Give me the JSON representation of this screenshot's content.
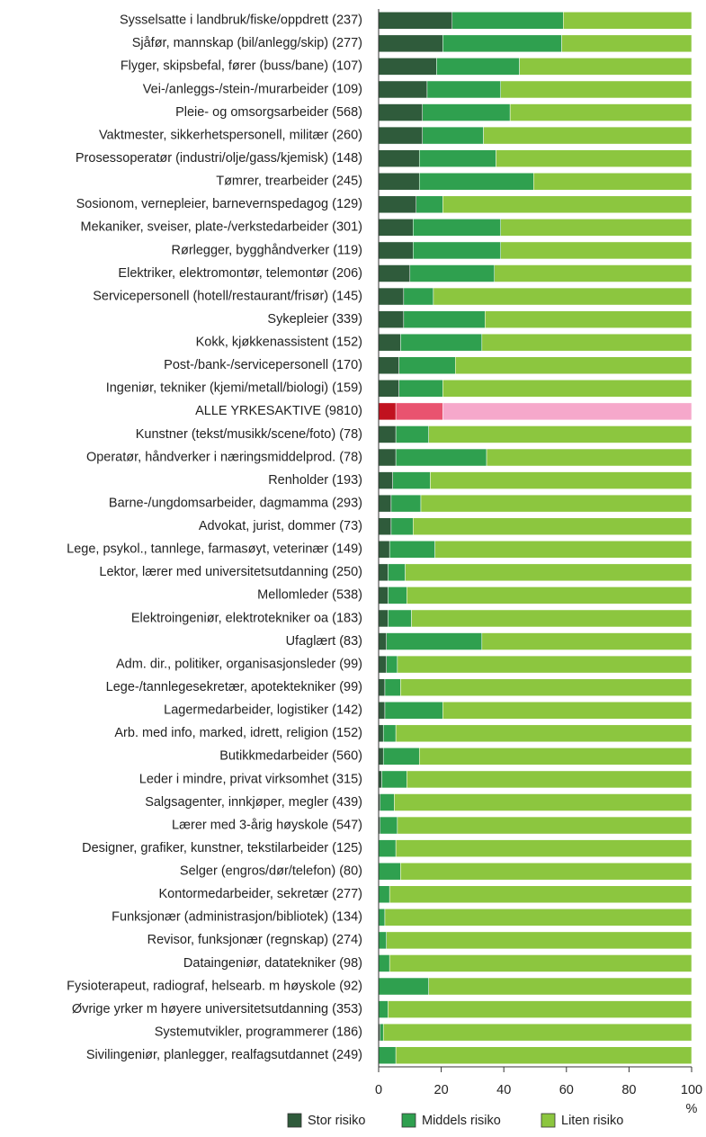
{
  "chart_data": {
    "type": "stacked_barh",
    "categories": [
      "Sysselsatte i landbruk/fiske/oppdrett (237)",
      "Sjåfør, mannskap (bil/anlegg/skip) (277)",
      "Flyger, skipsbefal, fører (buss/bane) (107)",
      "Vei-/anleggs-/stein-/murarbeider (109)",
      "Pleie- og omsorgsarbeider (568)",
      "Vaktmester, sikkerhetspersonell, militær (260)",
      "Prosessoperatør (industri/olje/gass/kjemisk) (148)",
      "Tømrer, trearbeider (245)",
      "Sosionom, vernepleier, barnevernspedagog (129)",
      "Mekaniker, sveiser, plate-/verkstedarbeider (301)",
      "Rørlegger, bygghåndverker (119)",
      "Elektriker, elektromontør, telemontør (206)",
      "Servicepersonell (hotell/restaurant/frisør) (145)",
      "Sykepleier (339)",
      "Kokk, kjøkkenassistent (152)",
      "Post-/bank-/servicepersonell (170)",
      "Ingeniør, tekniker (kjemi/metall/biologi) (159)",
      "ALLE YRKESAKTIVE (9810)",
      "Kunstner (tekst/musikk/scene/foto) (78)",
      "Operatør, håndverker i næringsmiddelprod. (78)",
      "Renholder (193)",
      "Barne-/ungdomsarbeider, dagmamma (293)",
      "Advokat, jurist, dommer (73)",
      "Lege, psykol., tannlege, farmasøyt, veterinær (149)",
      "Lektor, lærer med universitetsutdanning (250)",
      "Mellomleder (538)",
      "Elektroingeniør, elektrotekniker oa (183)",
      "Ufaglært (83)",
      "Adm. dir., politiker, organisasjonsleder (99)",
      "Lege-/tannlegesekretær, apotektekniker (99)",
      "Lagermedarbeider, logistiker (142)",
      "Arb. med info, marked, idrett, religion (152)",
      "Butikkmedarbeider (560)",
      "Leder i mindre, privat virksomhet (315)",
      "Salgsagenter, innkjøper, megler (439)",
      "Lærer med 3-årig høyskole (547)",
      "Designer, grafiker, kunstner, tekstilarbeider (125)",
      "Selger (engros/dør/telefon) (80)",
      "Kontormedarbeider, sekretær (277)",
      "Funksjonær (administrasjon/bibliotek) (134)",
      "Revisor, funksjonær (regnskap) (274)",
      "Dataingeniør, datatekniker (98)",
      "Fysioterapeut, radiograf, helsearb. m høyskole (92)",
      "Øvrige yrker m høyere universitetsutdanning (353)",
      "Systemutvikler, programmerer (186)",
      "Sivilingeniør, planlegger, realfagsutdannet (249)"
    ],
    "series": [
      {
        "name": "Stor risiko",
        "color": "#2f5b3b",
        "values": [
          23.5,
          20.5,
          18.5,
          15.5,
          14,
          14,
          13,
          13,
          12,
          11,
          11,
          10,
          8,
          8,
          7,
          6.5,
          6.5,
          5.5,
          5.5,
          5.5,
          4.5,
          4,
          4,
          3.5,
          3,
          3,
          3,
          2.5,
          2.5,
          2,
          2,
          1.5,
          1.5,
          1,
          0.5,
          0.5,
          0,
          0,
          0,
          0,
          0,
          0,
          0,
          0,
          0.5,
          0
        ]
      },
      {
        "name": "Middels risiko",
        "color": "#2fa04f",
        "values": [
          35.5,
          38,
          26.5,
          23.5,
          28,
          19.5,
          24.5,
          36.5,
          8.5,
          28,
          28,
          27,
          9.5,
          26,
          26,
          18,
          14,
          15,
          10.5,
          29,
          12,
          9.5,
          7,
          14.5,
          5.5,
          6,
          7.5,
          30.5,
          3.5,
          5,
          18.5,
          4,
          11.5,
          8,
          4.5,
          5.5,
          5.5,
          7,
          3.5,
          2,
          2.5,
          3.5,
          16,
          3,
          1,
          5.5
        ]
      },
      {
        "name": "Liten risiko",
        "color": "#8cc63f",
        "values": [
          41,
          41.5,
          55,
          61,
          58,
          66.5,
          62.5,
          50.5,
          79.5,
          61,
          61,
          63,
          82.5,
          66,
          67,
          75.5,
          79.5,
          79.5,
          84,
          65.5,
          83.5,
          86.5,
          89,
          82,
          91.5,
          91,
          89.5,
          67,
          94,
          93,
          79.5,
          94.5,
          87,
          91,
          95,
          94,
          94.5,
          93,
          96.5,
          98,
          97.5,
          96.5,
          84,
          97,
          98.5,
          94.5
        ]
      }
    ],
    "highlight_index": 17,
    "highlight_colors": [
      "#c1121f",
      "#e9536f",
      "#f6a8cb"
    ],
    "xlabel": "%",
    "xlim": [
      0,
      100
    ],
    "xticks": [
      0,
      20,
      40,
      60,
      80,
      100
    ],
    "grid": false,
    "legend": "bottom"
  }
}
